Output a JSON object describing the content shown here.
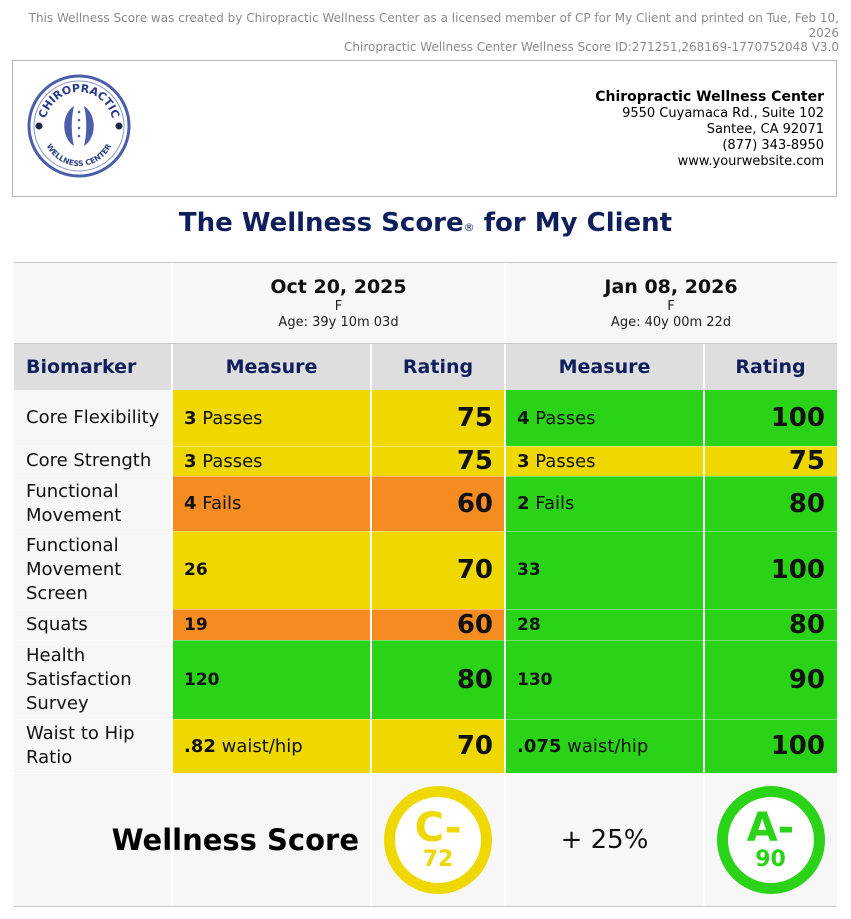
{
  "notice": {
    "line1": "This Wellness Score was created by Chiropractic Wellness Center as a licensed member of CP for My Client and printed on Tue, Feb 10, 2026",
    "line2": "Chiropractic Wellness Center Wellness Score ID:271251,268169-1770752048 V3.0"
  },
  "logo": {
    "top_text": "CHIROPRACTIC",
    "bottom_text": "WELLNESS CENTER"
  },
  "practice": {
    "name": "Chiropractic Wellness Center",
    "address1": "9550 Cuyamaca Rd., Suite 102",
    "address2": "Santee, CA 92071",
    "phone": "(877) 343-8950",
    "website": "www.yourwebsite.com"
  },
  "title": {
    "main": "The Wellness Score",
    "reg": "®",
    "suffix": "for My Client"
  },
  "visits": [
    {
      "date": "Oct 20, 2025",
      "sex": "F",
      "age": "Age: 39y 10m 03d"
    },
    {
      "date": "Jan 08, 2026",
      "sex": "F",
      "age": "Age: 40y 00m 22d"
    }
  ],
  "headers": {
    "biomarker": "Biomarker",
    "measure": "Measure",
    "rating": "Rating"
  },
  "colors": {
    "yellow": "#eed800",
    "green": "#2ad317",
    "orange": "#f48c22",
    "title": "#0f1f5c"
  },
  "rows": [
    {
      "label": "Core Flexibility",
      "v1": {
        "num": "3",
        "unit": "Passes",
        "rating": "75",
        "color": "yellow"
      },
      "v2": {
        "num": "4",
        "unit": "Passes",
        "rating": "100",
        "color": "green"
      }
    },
    {
      "label": "Core Strength",
      "v1": {
        "num": "3",
        "unit": "Passes",
        "rating": "75",
        "color": "yellow"
      },
      "v2": {
        "num": "3",
        "unit": "Passes",
        "rating": "75",
        "color": "yellow"
      }
    },
    {
      "label": "Functional Movement",
      "v1": {
        "num": "4",
        "unit": "Fails",
        "rating": "60",
        "color": "orange"
      },
      "v2": {
        "num": "2",
        "unit": "Fails",
        "rating": "80",
        "color": "green"
      }
    },
    {
      "label": "Functional Movement Screen",
      "v1": {
        "num": "26",
        "unit": "",
        "rating": "70",
        "color": "yellow"
      },
      "v2": {
        "num": "33",
        "unit": "",
        "rating": "100",
        "color": "green"
      }
    },
    {
      "label": "Squats",
      "v1": {
        "num": "19",
        "unit": "",
        "rating": "60",
        "color": "orange"
      },
      "v2": {
        "num": "28",
        "unit": "",
        "rating": "80",
        "color": "green"
      }
    },
    {
      "label": "Health Satisfaction Survey",
      "v1": {
        "num": "120",
        "unit": "",
        "rating": "80",
        "color": "green"
      },
      "v2": {
        "num": "130",
        "unit": "",
        "rating": "90",
        "color": "green"
      }
    },
    {
      "label": "Waist to Hip Ratio",
      "v1": {
        "num": ".82",
        "unit": "waist/hip",
        "rating": "70",
        "color": "yellow"
      },
      "v2": {
        "num": ".075",
        "unit": "waist/hip",
        "rating": "100",
        "color": "green"
      }
    }
  ],
  "footer": {
    "label": "Wellness Score",
    "change": "+ 25%",
    "score1": {
      "grade": "C-",
      "value": "72",
      "color": "#eed800"
    },
    "score2": {
      "grade": "A-",
      "value": "90",
      "color": "#2ad317"
    }
  }
}
